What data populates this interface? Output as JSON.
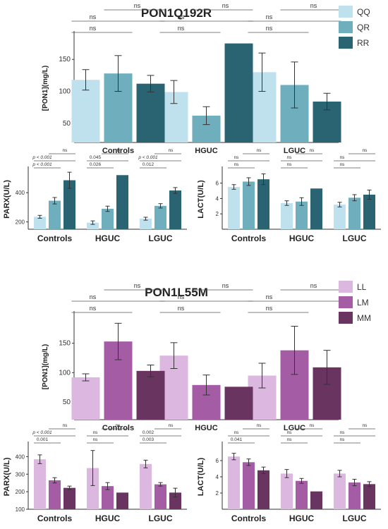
{
  "sections": [
    {
      "title": "PON1Q192R",
      "legend": [
        "QQ",
        "QR",
        "RR"
      ],
      "colors": [
        "#bfe1ee",
        "#6eaebd",
        "#2a6473"
      ]
    },
    {
      "title": "PON1L55M",
      "legend": [
        "LL",
        "LM",
        "MM"
      ],
      "colors": [
        "#dcb7df",
        "#a45ca4",
        "#6a3461"
      ]
    }
  ],
  "chart_data": [
    {
      "type": "bar",
      "section": 0,
      "ylabel": "[PON1](mg/L)",
      "categories": [
        "Controls",
        "HGUC",
        "LGUC"
      ],
      "ylim": [
        20,
        190
      ],
      "yticks": [
        50,
        100,
        150
      ],
      "series": [
        {
          "name": "QQ",
          "values": [
            118,
            99,
            130
          ],
          "errors": [
            16,
            18,
            30
          ]
        },
        {
          "name": "QR",
          "values": [
            128,
            62,
            110
          ],
          "errors": [
            28,
            14,
            36
          ]
        },
        {
          "name": "RR",
          "values": [
            112,
            175,
            84
          ],
          "errors": [
            13,
            0,
            13
          ]
        }
      ],
      "comparisons": [
        {
          "text": "ns",
          "from": [
            0,
            0
          ],
          "to": [
            0,
            1
          ],
          "level": 0
        },
        {
          "text": "ns",
          "from": [
            0,
            0
          ],
          "to": [
            0,
            2
          ],
          "level": 1
        },
        {
          "text": "ns",
          "from": [
            0,
            1
          ],
          "to": [
            0,
            2
          ],
          "level": 2
        },
        {
          "text": "ns",
          "from": [
            1,
            0
          ],
          "to": [
            1,
            1
          ],
          "level": 0
        },
        {
          "text": "ns",
          "from": [
            1,
            0
          ],
          "to": [
            1,
            2
          ],
          "level": 1
        },
        {
          "text": "ns",
          "from": [
            1,
            1
          ],
          "to": [
            1,
            2
          ],
          "level": 2
        },
        {
          "text": "ns",
          "from": [
            2,
            0
          ],
          "to": [
            2,
            1
          ],
          "level": 0
        },
        {
          "text": "ns",
          "from": [
            2,
            0
          ],
          "to": [
            2,
            2
          ],
          "level": 1
        },
        {
          "text": "ns",
          "from": [
            2,
            1
          ],
          "to": [
            2,
            2
          ],
          "level": 2
        }
      ]
    },
    {
      "type": "bar",
      "section": 0,
      "ylabel": "PARX(U/L)",
      "categories": [
        "Controls",
        "HGUC",
        "LGUC"
      ],
      "ylim": [
        150,
        560
      ],
      "yticks": [
        200,
        400
      ],
      "series": [
        {
          "name": "QQ",
          "values": [
            235,
            195,
            222
          ],
          "errors": [
            10,
            12,
            10
          ]
        },
        {
          "name": "QR",
          "values": [
            345,
            290,
            310
          ],
          "errors": [
            22,
            18,
            15
          ]
        },
        {
          "name": "RR",
          "values": [
            485,
            520,
            415
          ],
          "errors": [
            55,
            0,
            20
          ]
        }
      ],
      "comparisons": [
        {
          "text": "p < 0.001",
          "from": [
            0,
            0
          ],
          "to": [
            0,
            1
          ],
          "level": 0
        },
        {
          "text": "p < 0.001",
          "from": [
            0,
            0
          ],
          "to": [
            0,
            2
          ],
          "level": 1
        },
        {
          "text": "ns",
          "from": [
            0,
            1
          ],
          "to": [
            0,
            2
          ],
          "level": 2
        },
        {
          "text": "0.026",
          "from": [
            1,
            0
          ],
          "to": [
            1,
            1
          ],
          "level": 0
        },
        {
          "text": "0.045",
          "from": [
            1,
            0
          ],
          "to": [
            1,
            2
          ],
          "level": 1
        },
        {
          "text": "ns",
          "from": [
            1,
            1
          ],
          "to": [
            1,
            2
          ],
          "level": 2
        },
        {
          "text": "0.012",
          "from": [
            2,
            0
          ],
          "to": [
            2,
            1
          ],
          "level": 0
        },
        {
          "text": "p < 0.001",
          "from": [
            2,
            0
          ],
          "to": [
            2,
            2
          ],
          "level": 1
        },
        {
          "text": "ns",
          "from": [
            2,
            1
          ],
          "to": [
            2,
            2
          ],
          "level": 2
        }
      ]
    },
    {
      "type": "bar",
      "section": 0,
      "ylabel": "LACT(U/L)",
      "categories": [
        "Controls",
        "HGUC",
        "LGUC"
      ],
      "ylim": [
        0,
        7.8
      ],
      "yticks": [
        2,
        4,
        6
      ],
      "series": [
        {
          "name": "QQ",
          "values": [
            5.5,
            3.4,
            3.2
          ],
          "errors": [
            0.3,
            0.3,
            0.3
          ]
        },
        {
          "name": "QR",
          "values": [
            6.2,
            3.6,
            4.1
          ],
          "errors": [
            0.5,
            0.5,
            0.4
          ]
        },
        {
          "name": "RR",
          "values": [
            6.5,
            5.3,
            4.5
          ],
          "errors": [
            0.7,
            0,
            0.6
          ]
        }
      ],
      "comparisons": [
        {
          "text": "ns",
          "from": [
            0,
            0
          ],
          "to": [
            0,
            1
          ],
          "level": 0
        },
        {
          "text": "ns",
          "from": [
            0,
            0
          ],
          "to": [
            0,
            2
          ],
          "level": 1
        },
        {
          "text": "ns",
          "from": [
            0,
            1
          ],
          "to": [
            0,
            2
          ],
          "level": 2
        },
        {
          "text": "ns",
          "from": [
            1,
            0
          ],
          "to": [
            1,
            1
          ],
          "level": 0
        },
        {
          "text": "ns",
          "from": [
            1,
            0
          ],
          "to": [
            1,
            2
          ],
          "level": 1
        },
        {
          "text": "ns",
          "from": [
            1,
            1
          ],
          "to": [
            1,
            2
          ],
          "level": 2
        },
        {
          "text": "ns",
          "from": [
            2,
            0
          ],
          "to": [
            2,
            1
          ],
          "level": 0
        },
        {
          "text": "ns",
          "from": [
            2,
            0
          ],
          "to": [
            2,
            2
          ],
          "level": 1
        },
        {
          "text": "ns",
          "from": [
            2,
            1
          ],
          "to": [
            2,
            2
          ],
          "level": 2
        }
      ]
    },
    {
      "type": "bar",
      "section": 1,
      "ylabel": "[PON1](mg/L)",
      "categories": [
        "Controls",
        "HGUC",
        "LGUC"
      ],
      "ylim": [
        20,
        200
      ],
      "yticks": [
        50,
        100,
        150
      ],
      "series": [
        {
          "name": "LL",
          "values": [
            92,
            129,
            95
          ],
          "errors": [
            6,
            22,
            21
          ]
        },
        {
          "name": "LM",
          "values": [
            153,
            79,
            138
          ],
          "errors": [
            31,
            17,
            41
          ]
        },
        {
          "name": "MM",
          "values": [
            103,
            76,
            109
          ],
          "errors": [
            10,
            0,
            29
          ]
        }
      ],
      "comparisons": [
        {
          "text": "ns",
          "from": [
            0,
            0
          ],
          "to": [
            0,
            1
          ],
          "level": 0
        },
        {
          "text": "ns",
          "from": [
            0,
            0
          ],
          "to": [
            0,
            2
          ],
          "level": 1
        },
        {
          "text": "ns",
          "from": [
            0,
            1
          ],
          "to": [
            0,
            2
          ],
          "level": 2
        },
        {
          "text": "ns",
          "from": [
            1,
            0
          ],
          "to": [
            1,
            1
          ],
          "level": 0
        },
        {
          "text": "ns",
          "from": [
            1,
            0
          ],
          "to": [
            1,
            2
          ],
          "level": 1
        },
        {
          "text": "ns",
          "from": [
            1,
            1
          ],
          "to": [
            1,
            2
          ],
          "level": 2
        },
        {
          "text": "ns",
          "from": [
            2,
            0
          ],
          "to": [
            2,
            1
          ],
          "level": 0
        },
        {
          "text": "ns",
          "from": [
            2,
            0
          ],
          "to": [
            2,
            2
          ],
          "level": 1
        },
        {
          "text": "ns",
          "from": [
            2,
            1
          ],
          "to": [
            2,
            2
          ],
          "level": 2
        }
      ]
    },
    {
      "type": "bar",
      "section": 1,
      "ylabel": "PARX(U/L)",
      "categories": [
        "Controls",
        "HGUC",
        "LGUC"
      ],
      "ylim": [
        100,
        470
      ],
      "yticks": [
        100,
        200,
        300,
        400
      ],
      "series": [
        {
          "name": "LL",
          "values": [
            385,
            335,
            358
          ],
          "errors": [
            25,
            100,
            22
          ]
        },
        {
          "name": "LM",
          "values": [
            265,
            232,
            242
          ],
          "errors": [
            15,
            20,
            10
          ]
        },
        {
          "name": "MM",
          "values": [
            222,
            195,
            195
          ],
          "errors": [
            10,
            0,
            25
          ]
        }
      ],
      "comparisons": [
        {
          "text": "0.001",
          "from": [
            0,
            0
          ],
          "to": [
            0,
            1
          ],
          "level": 0
        },
        {
          "text": "p < 0.001",
          "from": [
            0,
            0
          ],
          "to": [
            0,
            2
          ],
          "level": 1
        },
        {
          "text": "ns",
          "from": [
            0,
            1
          ],
          "to": [
            0,
            2
          ],
          "level": 2
        },
        {
          "text": "ns",
          "from": [
            1,
            0
          ],
          "to": [
            1,
            1
          ],
          "level": 0
        },
        {
          "text": "ns",
          "from": [
            1,
            0
          ],
          "to": [
            1,
            2
          ],
          "level": 1
        },
        {
          "text": "ns",
          "from": [
            1,
            1
          ],
          "to": [
            1,
            2
          ],
          "level": 2
        },
        {
          "text": "0.003",
          "from": [
            2,
            0
          ],
          "to": [
            2,
            1
          ],
          "level": 0
        },
        {
          "text": "0.002",
          "from": [
            2,
            0
          ],
          "to": [
            2,
            2
          ],
          "level": 1
        },
        {
          "text": "ns",
          "from": [
            2,
            1
          ],
          "to": [
            2,
            2
          ],
          "level": 2
        }
      ]
    },
    {
      "type": "bar",
      "section": 1,
      "ylabel": "LACT(U/L)",
      "categories": [
        "Controls",
        "HGUC",
        "LGUC"
      ],
      "ylim": [
        0,
        8
      ],
      "yticks": [
        2,
        4,
        6
      ],
      "series": [
        {
          "name": "LL",
          "values": [
            6.5,
            4.4,
            4.4
          ],
          "errors": [
            0.4,
            0.5,
            0.4
          ]
        },
        {
          "name": "LM",
          "values": [
            5.8,
            3.5,
            3.3
          ],
          "errors": [
            0.4,
            0.3,
            0.4
          ]
        },
        {
          "name": "MM",
          "values": [
            4.8,
            2.2,
            3.1
          ],
          "errors": [
            0.4,
            0,
            0.3
          ]
        }
      ],
      "comparisons": [
        {
          "text": "0.041",
          "from": [
            0,
            0
          ],
          "to": [
            0,
            1
          ],
          "level": 0
        },
        {
          "text": "ns",
          "from": [
            0,
            0
          ],
          "to": [
            0,
            2
          ],
          "level": 1
        },
        {
          "text": "ns",
          "from": [
            0,
            1
          ],
          "to": [
            0,
            2
          ],
          "level": 2
        },
        {
          "text": "ns",
          "from": [
            1,
            0
          ],
          "to": [
            1,
            1
          ],
          "level": 0
        },
        {
          "text": "ns",
          "from": [
            1,
            0
          ],
          "to": [
            1,
            2
          ],
          "level": 1
        },
        {
          "text": "ns",
          "from": [
            1,
            1
          ],
          "to": [
            1,
            2
          ],
          "level": 2
        },
        {
          "text": "ns",
          "from": [
            2,
            0
          ],
          "to": [
            2,
            1
          ],
          "level": 0
        },
        {
          "text": "ns",
          "from": [
            2,
            0
          ],
          "to": [
            2,
            2
          ],
          "level": 1
        },
        {
          "text": "ns",
          "from": [
            2,
            1
          ],
          "to": [
            2,
            2
          ],
          "level": 2
        }
      ]
    }
  ]
}
